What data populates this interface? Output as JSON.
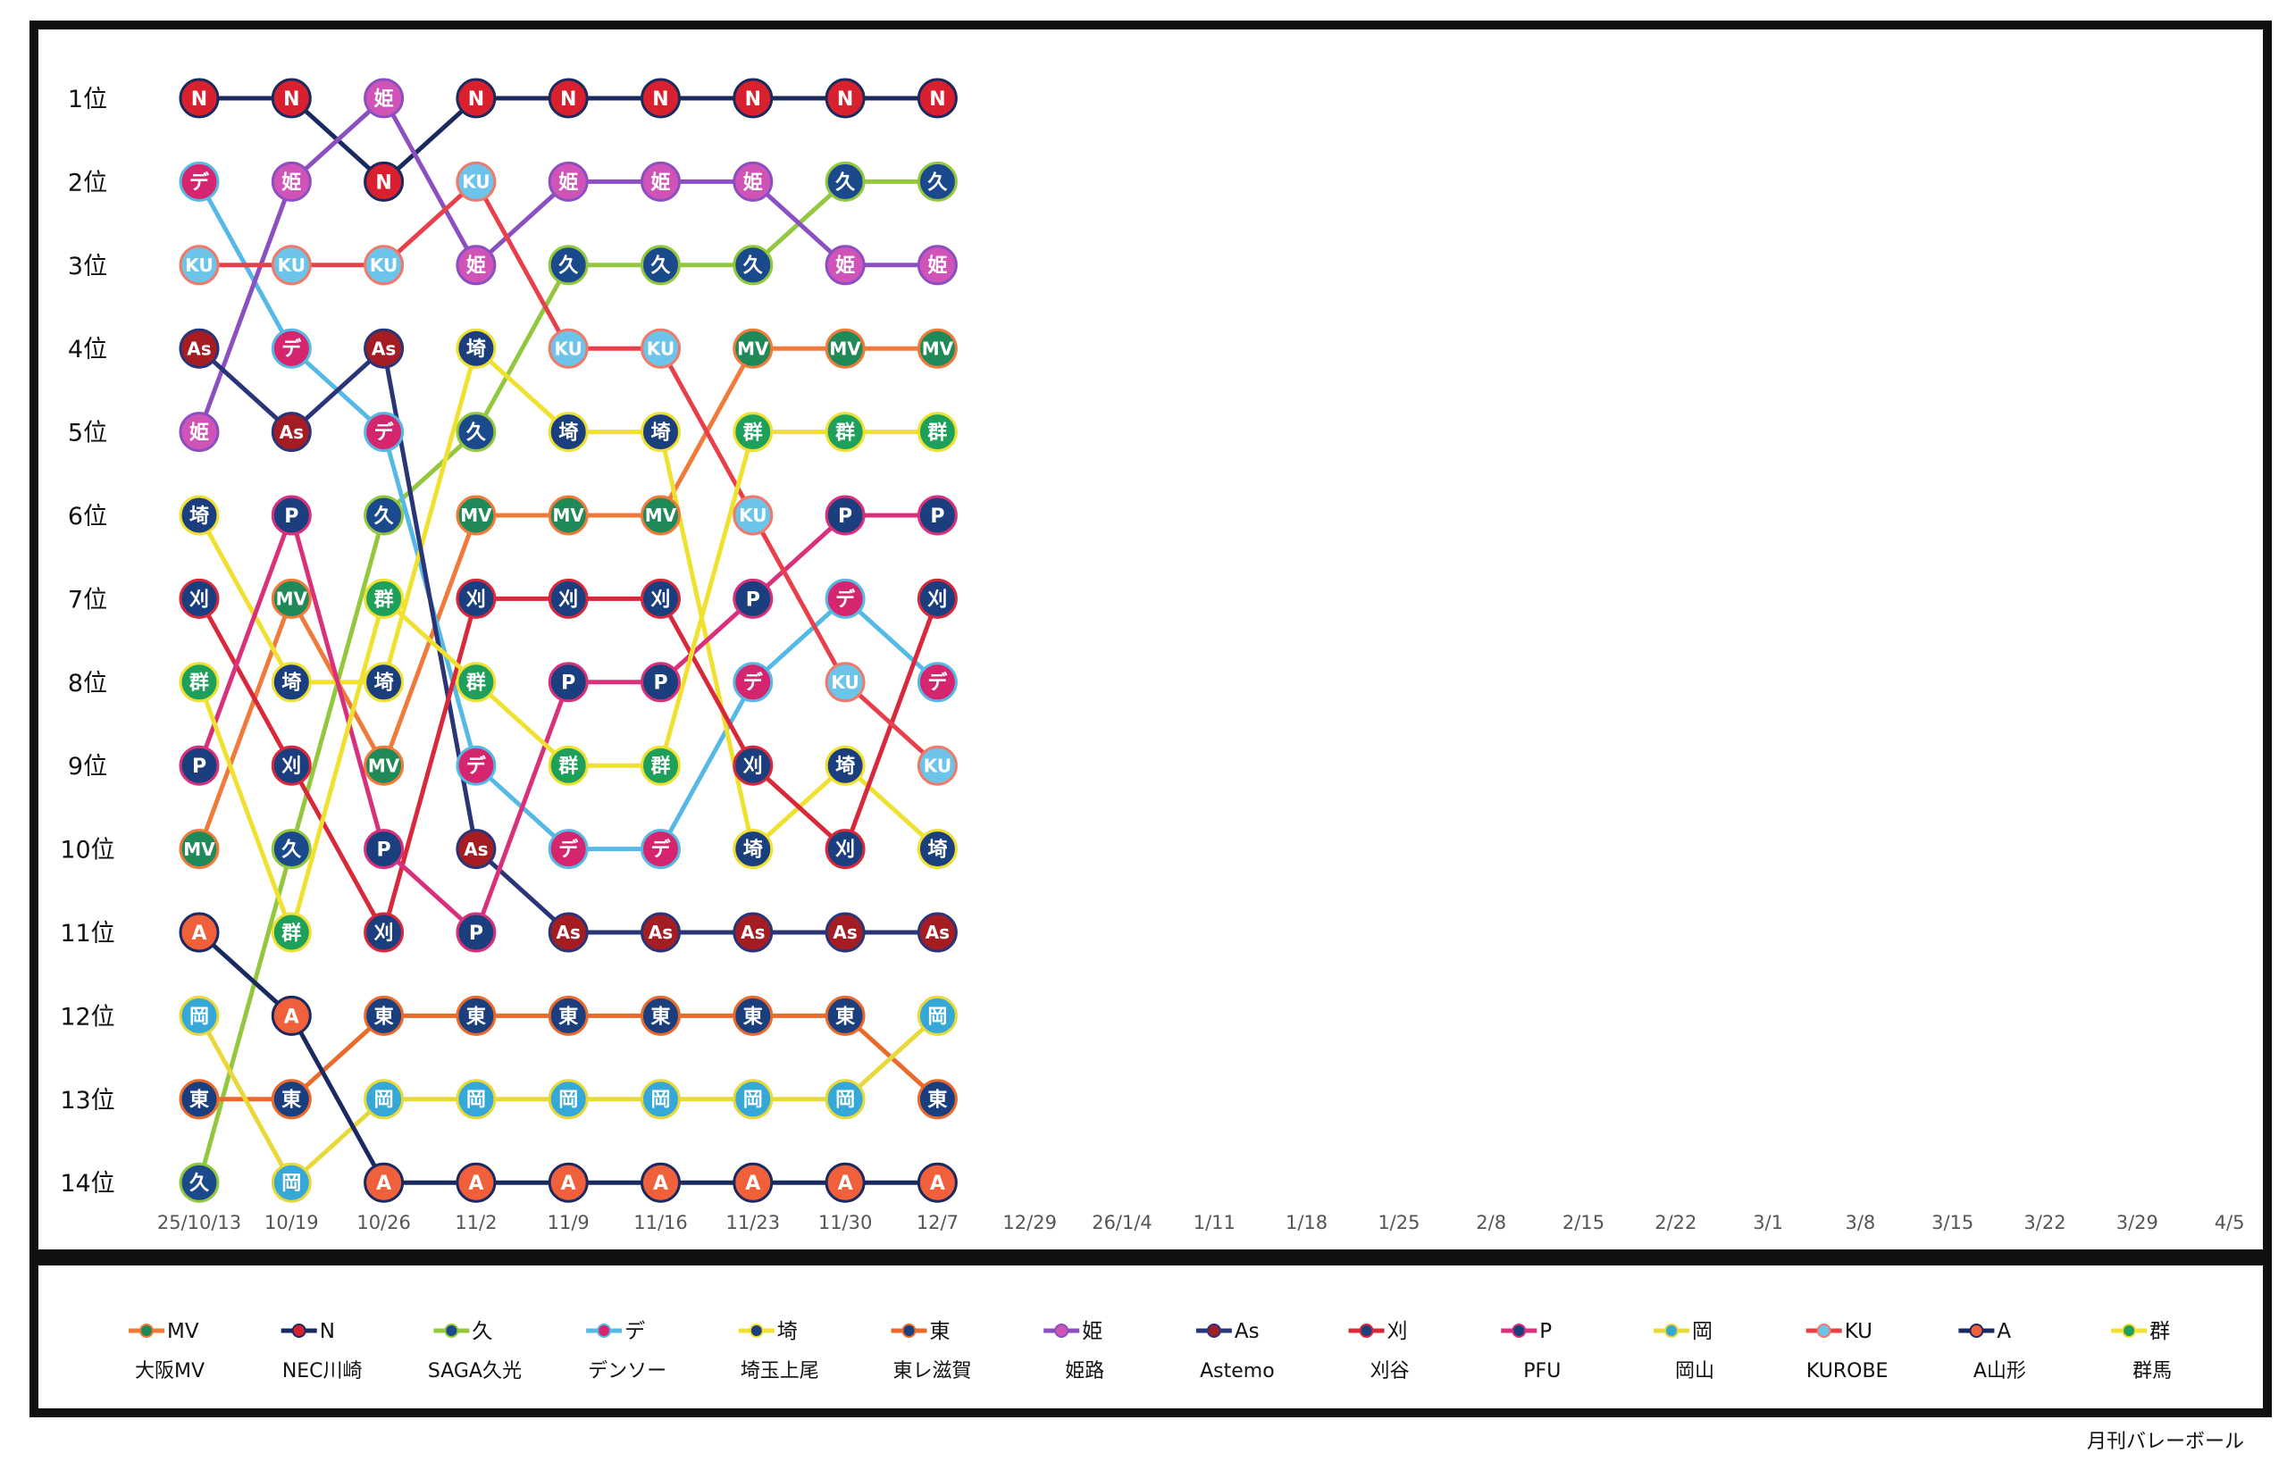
{
  "source_credit": "月刊バレーボール",
  "chart_data": {
    "type": "line",
    "subtype": "bump",
    "title": "",
    "xlabel": "",
    "ylabel": "",
    "rank_labels": [
      "1位",
      "2位",
      "3位",
      "4位",
      "5位",
      "6位",
      "7位",
      "8位",
      "9位",
      "10位",
      "11位",
      "12位",
      "13位",
      "14位"
    ],
    "x": [
      "25/10/13",
      "10/19",
      "10/26",
      "11/2",
      "11/9",
      "11/16",
      "11/23",
      "11/30",
      "12/7",
      "12/29",
      "26/1/4",
      "1/11",
      "1/18",
      "1/25",
      "2/8",
      "2/15",
      "2/22",
      "3/1",
      "3/8",
      "3/15",
      "3/22",
      "3/29",
      "4/5"
    ],
    "ylim": [
      1,
      14
    ],
    "y_inverted": true,
    "grid": false,
    "legend_position": "bottom",
    "series": [
      {
        "name": "大阪MV",
        "marker": "MV",
        "line_color": "#f07a3a",
        "fill": "#1f8a58",
        "stroke": "#f07a3a",
        "ranks": [
          10,
          7,
          9,
          6,
          6,
          6,
          4,
          4,
          4
        ]
      },
      {
        "name": "NEC川崎",
        "marker": "N",
        "line_color": "#1b2a5e",
        "fill": "#d8202e",
        "stroke": "#1b2a5e",
        "ranks": [
          1,
          1,
          2,
          1,
          1,
          1,
          1,
          1,
          1
        ]
      },
      {
        "name": "SAGA久光",
        "marker": "久",
        "line_color": "#93c83e",
        "fill": "#1a4a8c",
        "stroke": "#93c83e",
        "ranks": [
          14,
          10,
          6,
          5,
          3,
          3,
          3,
          2,
          2
        ]
      },
      {
        "name": "デンソー",
        "marker": "デ",
        "line_color": "#55b9e5",
        "fill": "#d4256e",
        "stroke": "#55b9e5",
        "ranks": [
          2,
          4,
          5,
          9,
          10,
          10,
          8,
          7,
          8
        ]
      },
      {
        "name": "埼玉上尾",
        "marker": "埼",
        "line_color": "#f0e030",
        "fill": "#1b3f7e",
        "stroke": "#f0e030",
        "ranks": [
          6,
          8,
          8,
          4,
          5,
          5,
          10,
          9,
          10
        ]
      },
      {
        "name": "東レ滋賀",
        "marker": "東",
        "line_color": "#ea6a2c",
        "fill": "#1b3f7e",
        "stroke": "#ea6a2c",
        "ranks": [
          13,
          13,
          12,
          12,
          12,
          12,
          12,
          12,
          13
        ]
      },
      {
        "name": "姫路",
        "marker": "姫",
        "line_color": "#8b4fc0",
        "fill": "#d054b8",
        "stroke": "#8b4fc0",
        "ranks": [
          5,
          2,
          1,
          3,
          2,
          2,
          2,
          3,
          3
        ]
      },
      {
        "name": "Astemo",
        "marker": "As",
        "line_color": "#2a3578",
        "fill": "#a51c22",
        "stroke": "#2a3578",
        "ranks": [
          4,
          5,
          4,
          10,
          11,
          11,
          11,
          11,
          11
        ]
      },
      {
        "name": "刈谷",
        "marker": "刈",
        "line_color": "#d8283a",
        "fill": "#1b3f7e",
        "stroke": "#d8283a",
        "ranks": [
          7,
          9,
          11,
          7,
          7,
          7,
          9,
          10,
          7
        ]
      },
      {
        "name": "PFU",
        "marker": "P",
        "line_color": "#d8307a",
        "fill": "#1b3f7e",
        "stroke": "#d8307a",
        "ranks": [
          9,
          6,
          10,
          11,
          8,
          8,
          7,
          6,
          6
        ]
      },
      {
        "name": "岡山",
        "marker": "岡",
        "line_color": "#e8d83a",
        "fill": "#35a8d8",
        "stroke": "#e8d83a",
        "ranks": [
          12,
          14,
          13,
          13,
          13,
          13,
          13,
          13,
          12
        ]
      },
      {
        "name": "KUROBE",
        "marker": "KU",
        "line_color": "#e8404a",
        "fill": "#6cc4ea",
        "stroke": "#f07a6a",
        "ranks": [
          3,
          3,
          3,
          2,
          4,
          4,
          6,
          8,
          9
        ]
      },
      {
        "name": "A山形",
        "marker": "A",
        "line_color": "#1a2a60",
        "fill": "#f0603a",
        "stroke": "#1a2a60",
        "ranks": [
          11,
          12,
          14,
          14,
          14,
          14,
          14,
          14,
          14
        ]
      },
      {
        "name": "群馬",
        "marker": "群",
        "line_color": "#f0e030",
        "fill": "#1ea05a",
        "stroke": "#f0e030",
        "ranks": [
          8,
          11,
          7,
          8,
          9,
          9,
          5,
          5,
          5
        ]
      }
    ]
  }
}
